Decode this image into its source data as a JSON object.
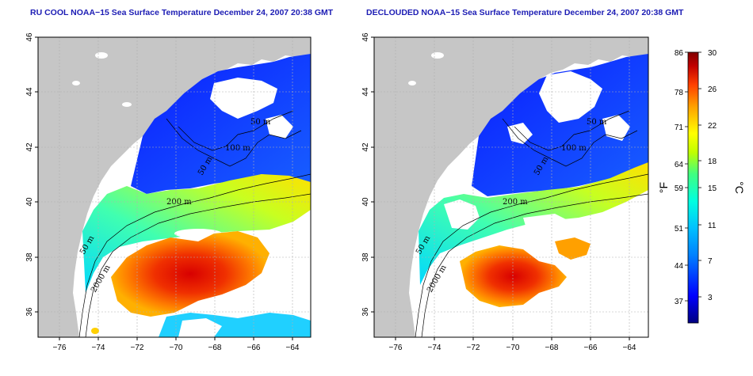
{
  "maps": [
    {
      "title": "RU COOL NOAA−15 Sea Surface Temperature December 24, 2007 20:38 GMT",
      "contour_labels": [
        "50 m",
        "100 m",
        "50 m",
        "200 m",
        "50 m",
        "2000 m"
      ]
    },
    {
      "title": "DECLOUDED NOAA−15 Sea Surface Temperature December 24, 2007 20:38 GMT",
      "contour_labels": [
        "50 m",
        "100 m",
        "50 m",
        "200 m",
        "50 m",
        "2000 m"
      ]
    }
  ],
  "x_ticks": [
    "−76",
    "−74",
    "−72",
    "−70",
    "−68",
    "−66",
    "−64"
  ],
  "y_ticks": [
    "46",
    "44",
    "42",
    "40",
    "38",
    "36"
  ],
  "colorbar": {
    "fahrenheit_label": "°F",
    "celsius_label": "°C",
    "fahrenheit_ticks": [
      "86",
      "78",
      "71",
      "64",
      "59",
      "51",
      "44",
      "37"
    ],
    "celsius_ticks": [
      "30",
      "26",
      "22",
      "18",
      "15",
      "11",
      "7",
      "3"
    ],
    "colors": [
      "#000080",
      "#0000ff",
      "#0080ff",
      "#00c0ff",
      "#00ffe0",
      "#40ff80",
      "#c0ff00",
      "#ffff00",
      "#ffa000",
      "#ff4000",
      "#c00000",
      "#800000"
    ]
  },
  "colors": {
    "land": "#c6c6c6",
    "axis": "#000000",
    "title": "#1c1cb4",
    "grid": "#c8c8c8"
  }
}
